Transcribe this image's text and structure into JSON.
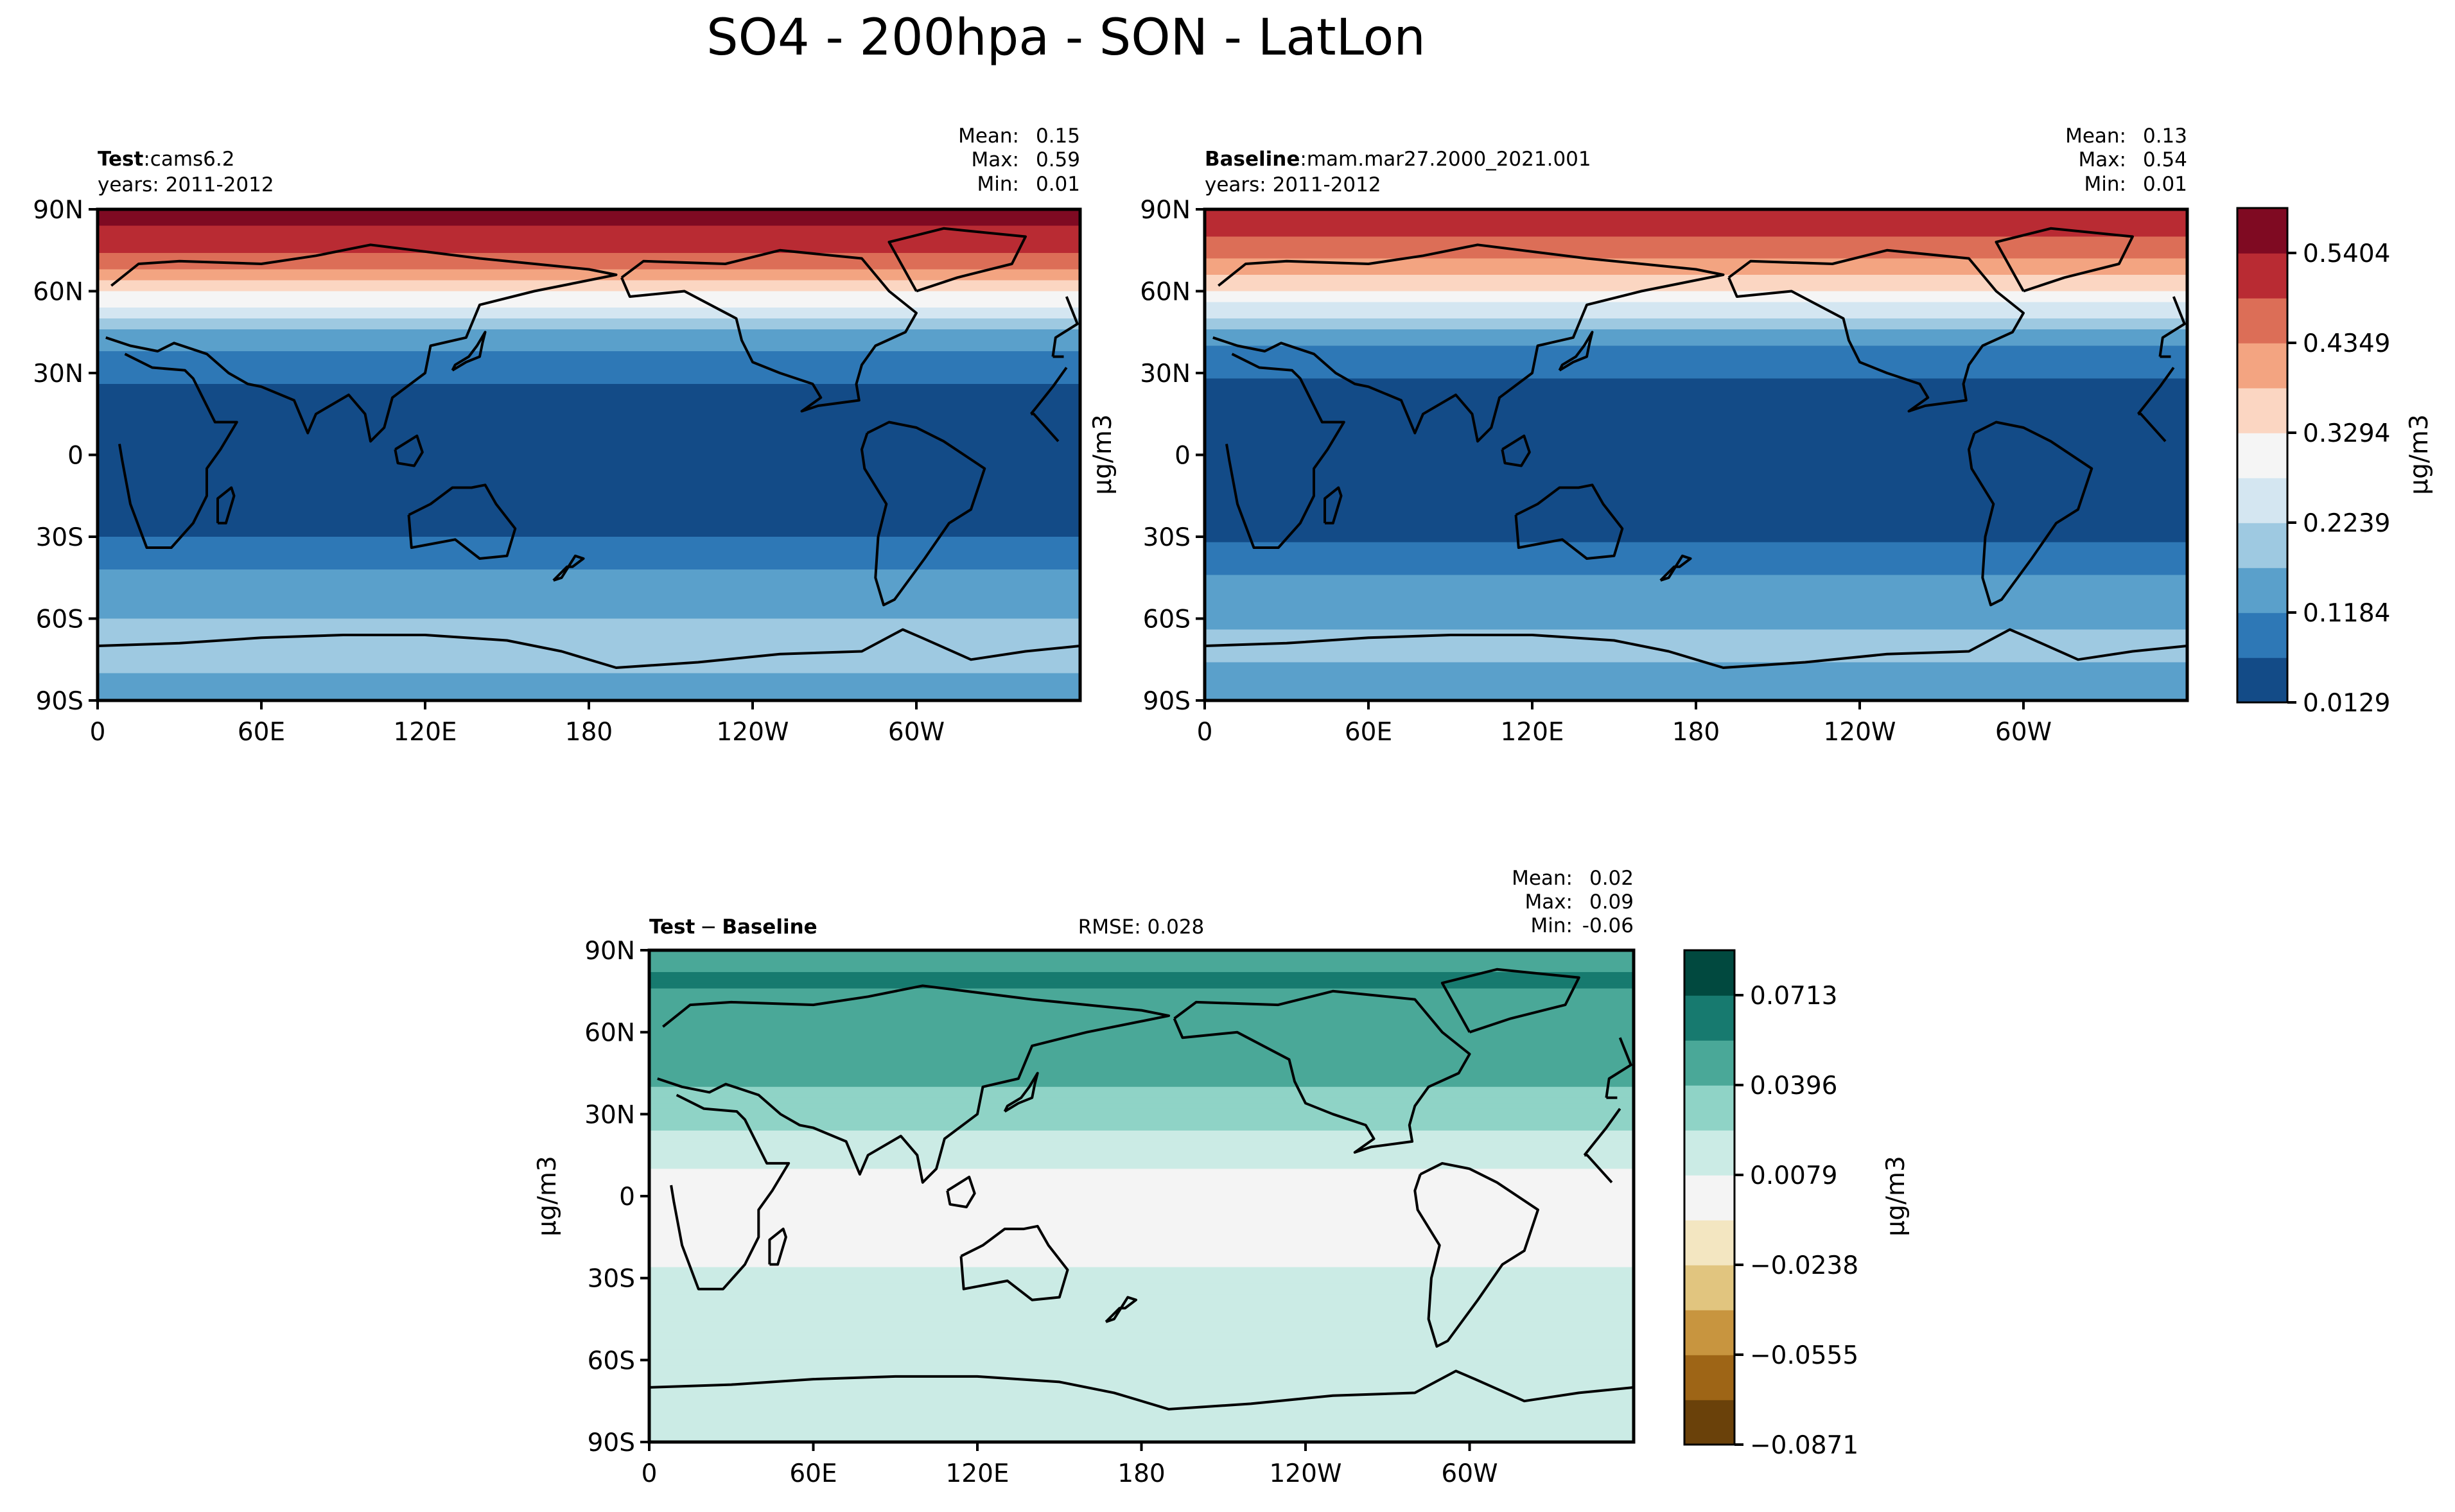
{
  "figure_title": "SO4 - 200hpa - SON - LatLon",
  "colors": {
    "test_baseline_levels": [
      "#134b87",
      "#2e78b6",
      "#5aa0cb",
      "#9ec9e1",
      "#d4e6f1",
      "#f5f5f5",
      "#fbd6c2",
      "#f3a481",
      "#dc6e57",
      "#b92b33",
      "#7f0a22"
    ],
    "diff_levels": [
      "#6a410a",
      "#9e6516",
      "#c8953f",
      "#e1c57f",
      "#f3e6c1",
      "#f4f4f4",
      "#cbebe5",
      "#8fd3c6",
      "#4aa898",
      "#177a6f",
      "#01493f"
    ]
  },
  "chart_data": [
    {
      "type": "heatmap",
      "panel": "test",
      "label_bold": "Test",
      "label_sep": ":",
      "label_value": "cams6.2",
      "years_text": "years: 2011-2012",
      "stats": [
        {
          "name": "Mean:",
          "value": "0.15"
        },
        {
          "name": "Max:",
          "value": "0.59"
        },
        {
          "name": "Min:",
          "value": "0.01"
        }
      ],
      "xticks": [
        "0",
        "60E",
        "120E",
        "180",
        "120W",
        "60W"
      ],
      "yticks": [
        "90N",
        "60N",
        "30N",
        "0",
        "30S",
        "60S",
        "90S"
      ],
      "lat_profile": [
        [
          90,
          0.57
        ],
        [
          75,
          0.5
        ],
        [
          65,
          0.4
        ],
        [
          58,
          0.31
        ],
        [
          52,
          0.25
        ],
        [
          45,
          0.17
        ],
        [
          35,
          0.1
        ],
        [
          25,
          0.06
        ],
        [
          10,
          0.03
        ],
        [
          0,
          0.02
        ],
        [
          -15,
          0.02
        ],
        [
          -25,
          0.04
        ],
        [
          -35,
          0.09
        ],
        [
          -50,
          0.15
        ],
        [
          -60,
          0.17
        ],
        [
          -70,
          0.2
        ],
        [
          -80,
          0.17
        ],
        [
          -90,
          0.16
        ]
      ]
    },
    {
      "type": "heatmap",
      "panel": "baseline",
      "label_bold": "Baseline",
      "label_sep": ":",
      "label_value": "mam.mar27.2000_2021.001",
      "years_text": "years: 2011-2012",
      "stats": [
        {
          "name": "Mean:",
          "value": "0.13"
        },
        {
          "name": "Max:",
          "value": "0.54"
        },
        {
          "name": "Min:",
          "value": "0.01"
        }
      ],
      "xticks": [
        "0",
        "60E",
        "120E",
        "180",
        "120W",
        "60W"
      ],
      "yticks": [
        "90N",
        "60N",
        "30N",
        "0",
        "30S",
        "60S",
        "90S"
      ],
      "ylabel": "μg/m3",
      "lat_profile": [
        [
          90,
          0.53
        ],
        [
          75,
          0.46
        ],
        [
          65,
          0.37
        ],
        [
          58,
          0.3
        ],
        [
          52,
          0.24
        ],
        [
          45,
          0.16
        ],
        [
          35,
          0.09
        ],
        [
          25,
          0.05
        ],
        [
          10,
          0.02
        ],
        [
          0,
          0.02
        ],
        [
          -15,
          0.02
        ],
        [
          -25,
          0.04
        ],
        [
          -35,
          0.08
        ],
        [
          -50,
          0.14
        ],
        [
          -60,
          0.16
        ],
        [
          -70,
          0.19
        ],
        [
          -80,
          0.16
        ],
        [
          -90,
          0.15
        ]
      ],
      "colorbar": {
        "tick_labels": [
          "0.5404",
          "0.4349",
          "0.3294",
          "0.2239",
          "0.1184",
          "0.0129"
        ],
        "range": [
          0.0129,
          0.5931
        ],
        "label": "μg/m3"
      }
    },
    {
      "type": "heatmap",
      "panel": "difference",
      "label_bold_1": "Test",
      "label_sep": "−",
      "label_bold_2": "Baseline",
      "rmse_text": "RMSE: 0.028",
      "stats": [
        {
          "name": "Mean:",
          "value": "0.02"
        },
        {
          "name": "Max:",
          "value": "0.09"
        },
        {
          "name": "Min:",
          "value": "-0.06"
        }
      ],
      "xticks": [
        "0",
        "60E",
        "120E",
        "180",
        "120W",
        "60W"
      ],
      "yticks": [
        "90N",
        "60N",
        "30N",
        "0",
        "30S",
        "60S",
        "90S"
      ],
      "ylabel": "μg/m3",
      "lat_profile": [
        [
          90,
          0.045
        ],
        [
          80,
          0.06
        ],
        [
          70,
          0.05
        ],
        [
          55,
          0.045
        ],
        [
          40,
          0.04
        ],
        [
          30,
          0.03
        ],
        [
          20,
          0.02
        ],
        [
          10,
          0.008
        ],
        [
          0,
          0.003
        ],
        [
          -20,
          0.005
        ],
        [
          -30,
          0.01
        ],
        [
          -50,
          0.01
        ],
        [
          -90,
          0.01
        ]
      ],
      "colorbar": {
        "tick_labels": [
          "0.0713",
          "0.0396",
          "0.0079",
          "−0.0238",
          "−0.0555",
          "−0.0871"
        ],
        "range": [
          -0.0871,
          0.0872
        ],
        "label": "μg/m3"
      }
    }
  ]
}
